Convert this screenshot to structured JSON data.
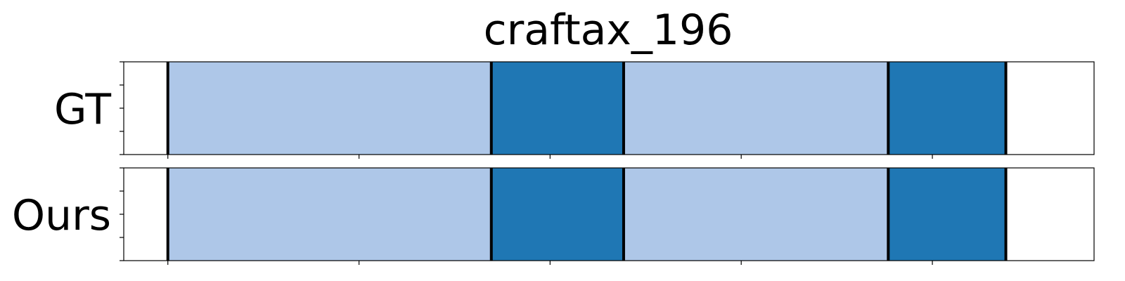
{
  "chart_data": {
    "type": "bar",
    "title": "craftax_196",
    "xlim": [
      0,
      1.1
    ],
    "rows": [
      {
        "label": "GT",
        "segments": [
          {
            "start": 0.05,
            "end": 0.4167,
            "color": "#aec7e8"
          },
          {
            "start": 0.4167,
            "end": 0.5667,
            "color": "#1f77b4"
          },
          {
            "start": 0.5667,
            "end": 0.8667,
            "color": "#aec7e8"
          },
          {
            "start": 0.8667,
            "end": 1.0,
            "color": "#1f77b4"
          }
        ],
        "boundaries": [
          0.05,
          0.4167,
          0.5667,
          0.8667,
          1.0
        ]
      },
      {
        "label": "Ours",
        "segments": [
          {
            "start": 0.05,
            "end": 0.4167,
            "color": "#aec7e8"
          },
          {
            "start": 0.4167,
            "end": 0.5667,
            "color": "#1f77b4"
          },
          {
            "start": 0.5667,
            "end": 0.8667,
            "color": "#aec7e8"
          },
          {
            "start": 0.8667,
            "end": 1.0,
            "color": "#1f77b4"
          }
        ],
        "boundaries": [
          0.05,
          0.4167,
          0.5667,
          0.8667,
          1.0
        ]
      }
    ],
    "x_ticks": [
      0.05,
      0.2667,
      0.4833,
      0.7,
      0.9167,
      1.1333
    ],
    "y_ticks_per_row": 5,
    "grid": false,
    "legend": "none"
  }
}
